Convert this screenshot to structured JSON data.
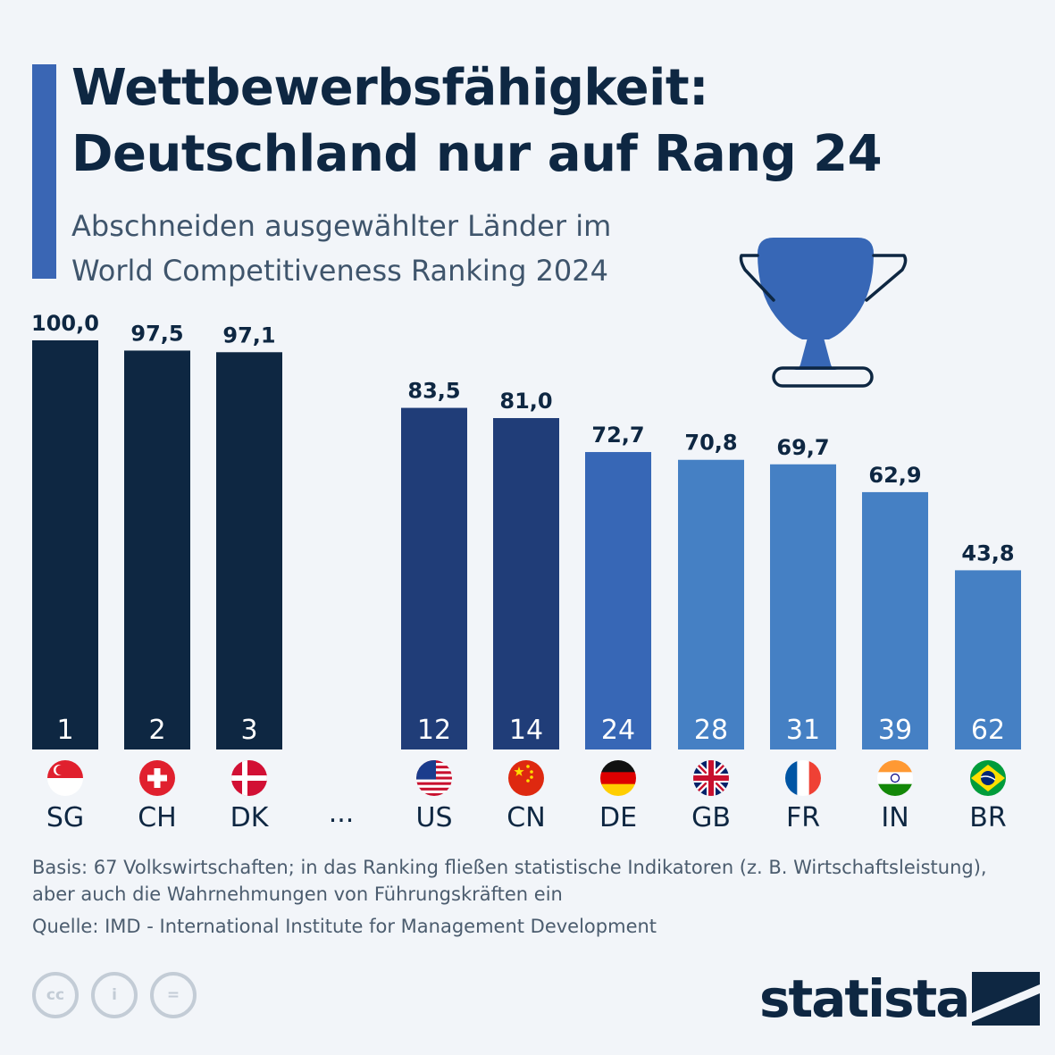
{
  "title_line1": "Wettbewerbsfähigkeit:",
  "title_line2": "Deutschland nur auf Rang 24",
  "subtitle_line1": "Abschneiden ausgewählter Länder im",
  "subtitle_line2": "World Competitiveness Ranking 2024",
  "colors": {
    "navy": "#0e2742",
    "dark_blue": "#203d78",
    "mid_blue": "#3767b6",
    "light_blue": "#4580c4",
    "accent": "#3a66b4"
  },
  "chart_data": {
    "type": "bar",
    "title": "Wettbewerbsfähigkeit: Deutschland nur auf Rang 24",
    "ylim": [
      0,
      100
    ],
    "categories": [
      "SG",
      "CH",
      "DK",
      "US",
      "CN",
      "DE",
      "GB",
      "FR",
      "IN",
      "BR"
    ],
    "values": [
      100.0,
      97.5,
      97.1,
      83.5,
      81.0,
      72.7,
      70.8,
      69.7,
      62.9,
      43.8
    ],
    "value_labels": [
      "100,0",
      "97,5",
      "97,1",
      "83,5",
      "81,0",
      "72,7",
      "70,8",
      "69,7",
      "62,9",
      "43,8"
    ],
    "ranks": [
      "1",
      "2",
      "3",
      "12",
      "14",
      "24",
      "28",
      "31",
      "39",
      "62"
    ],
    "flags": [
      "sg-flag-icon",
      "ch-flag-icon",
      "dk-flag-icon",
      "us-flag-icon",
      "cn-flag-icon",
      "de-flag-icon",
      "gb-flag-icon",
      "fr-flag-icon",
      "in-flag-icon",
      "br-flag-icon"
    ],
    "gap_label": "..."
  },
  "footnote": {
    "basis": "Basis: 67 Volkswirtschaften; in das Ranking fließen statistische Indikatoren (z. B. Wirtschaftsleistung), aber auch die Wahrnehmungen von Führungskräften ein",
    "source": "Quelle: IMD - International Institute for Management Development"
  },
  "license_icons": {
    "cc": "cc",
    "by": "i",
    "nd": "="
  },
  "brand": "statista"
}
